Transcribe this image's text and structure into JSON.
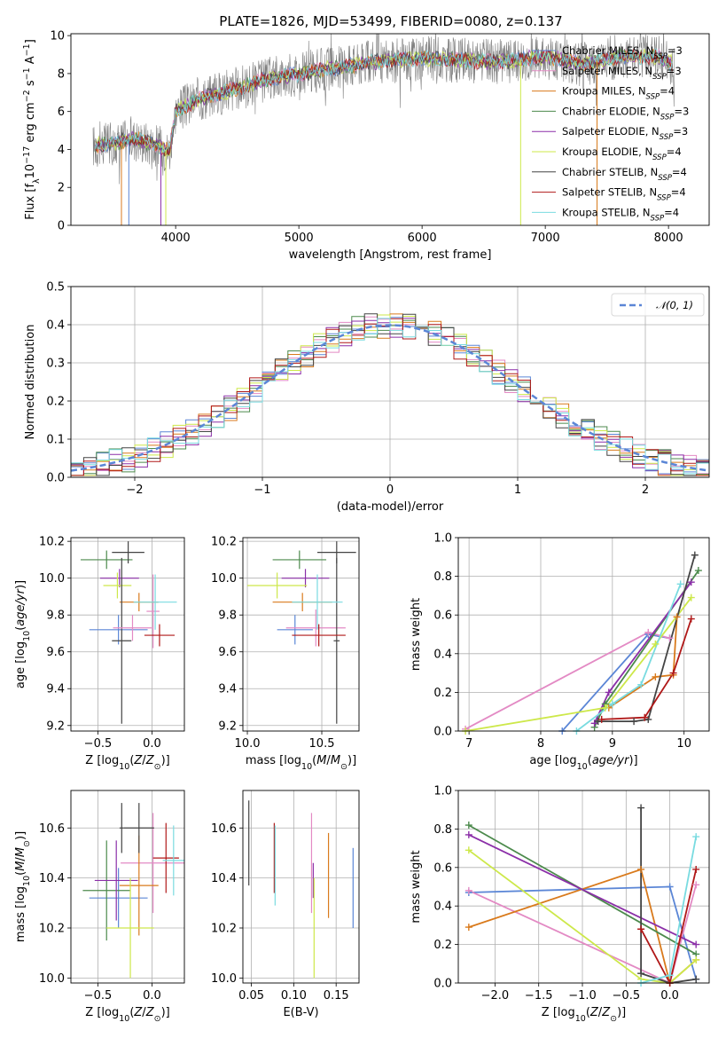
{
  "colors": {
    "blue": "#5b86d6",
    "orange": "#d97a1c",
    "green": "#4c8a4c",
    "red": "#b01818",
    "purple": "#8b2fa8",
    "brown": "#8b5a2b",
    "pink": "#e38ac4",
    "gray": "#7f7f7f",
    "olive": "#cde84a",
    "cyan": "#79dbe0",
    "black": "#444444",
    "grid": "#b0b0b0"
  },
  "chart_data": [
    {
      "id": "spectrum",
      "type": "line",
      "title": "PLATE=1826, MJD=53499, FIBERID=0080, z=0.137",
      "xlabel": "wavelength [Angstrom, rest frame]",
      "ylabel": "Flux [fλ10⁻¹⁷ erg cm⁻² s⁻¹ A⁻¹]",
      "xlim": [
        3150,
        8330
      ],
      "ylim": [
        0,
        10.1
      ],
      "xticks": [
        4000,
        5000,
        6000,
        7000,
        8000
      ],
      "yticks": [
        0,
        2,
        4,
        6,
        8,
        10
      ],
      "legend": "top-right",
      "grid": false,
      "continuum": {
        "x": [
          3330,
          3500,
          3650,
          3800,
          3950,
          4000,
          4200,
          4500,
          4800,
          5000,
          5300,
          5600,
          6000,
          6300,
          6600,
          7000,
          7300,
          7600,
          7900,
          8050
        ],
        "y": [
          4.2,
          4.3,
          4.6,
          4.3,
          3.9,
          6.0,
          6.7,
          7.2,
          7.8,
          8.0,
          8.3,
          8.6,
          8.8,
          8.7,
          8.6,
          8.9,
          8.5,
          8.9,
          8.9,
          8.5
        ]
      },
      "series": [
        {
          "name": "Chabrier MILES, N_SSP=3",
          "label_main": "Chabrier MILES, N",
          "label_sub": "SSP",
          "label_end": "=3",
          "color": "blue"
        },
        {
          "name": "Salpeter MILES, N_SSP=3",
          "label_main": "Salpeter MILES, N",
          "label_sub": "SSP",
          "label_end": "=3",
          "color": "pink"
        },
        {
          "name": "Kroupa MILES, N_SSP=4",
          "label_main": "Kroupa MILES, N",
          "label_sub": "SSP",
          "label_end": "=4",
          "color": "orange"
        },
        {
          "name": "Chabrier ELODIE, N_SSP=3",
          "label_main": "Chabrier ELODIE, N",
          "label_sub": "SSP",
          "label_end": "=3",
          "color": "green"
        },
        {
          "name": "Salpeter ELODIE, N_SSP=3",
          "label_main": "Salpeter ELODIE, N",
          "label_sub": "SSP",
          "label_end": "=3",
          "color": "purple"
        },
        {
          "name": "Kroupa ELODIE, N_SSP=4",
          "label_main": "Kroupa ELODIE, N",
          "label_sub": "SSP",
          "label_end": "=4",
          "color": "olive"
        },
        {
          "name": "Chabrier STELIB, N_SSP=4",
          "label_main": "Chabrier STELIB, N",
          "label_sub": "SSP",
          "label_end": "=4",
          "color": "black"
        },
        {
          "name": "Salpeter STELIB, N_SSP=4",
          "label_main": "Salpeter STELIB, N",
          "label_sub": "SSP",
          "label_end": "=4",
          "color": "red"
        },
        {
          "name": "Kroupa STELIB, N_SSP=4",
          "label_main": "Kroupa STELIB, N",
          "label_sub": "SSP",
          "label_end": "=4",
          "color": "cyan"
        }
      ],
      "drops": [
        {
          "x": 3560,
          "color": "orange"
        },
        {
          "x": 3620,
          "color": "blue"
        },
        {
          "x": 3880,
          "color": "purple"
        },
        {
          "x": 3920,
          "color": "olive"
        },
        {
          "x": 6800,
          "color": "olive"
        },
        {
          "x": 7420,
          "color": "orange"
        }
      ]
    },
    {
      "id": "residuals",
      "type": "step",
      "xlabel": "(data-model)/error",
      "ylabel": "Normed distribution",
      "xlim": [
        -2.5,
        2.5
      ],
      "ylim": [
        0,
        0.5
      ],
      "xticks": [
        -2,
        -1,
        0,
        1,
        2
      ],
      "yticks": [
        0.0,
        0.1,
        0.2,
        0.3,
        0.4,
        0.5
      ],
      "grid": true,
      "legend": "top-right",
      "gaussian_label": "𝒩(0, 1)",
      "bins": {
        "start": -2.5,
        "width": 0.1,
        "count": 50
      },
      "gaussian": {
        "mean": 0,
        "sigma": 1
      }
    },
    {
      "id": "age_vs_Z",
      "type": "errorbar",
      "xlabel": "Z [log10(Z/Z⊙)]",
      "ylabel": "age  [log10(age/yr)]",
      "xlim": [
        -0.75,
        0.3
      ],
      "ylim": [
        9.17,
        10.22
      ],
      "xticks": [
        -0.5,
        0.0
      ],
      "yticks": [
        9.2,
        9.4,
        9.6,
        9.8,
        10.0,
        10.2
      ],
      "grid": true,
      "points": [
        {
          "x": -0.31,
          "xerr": 0.27,
          "y": 9.72,
          "yerr": 0.08,
          "color": "blue"
        },
        {
          "x": 0.01,
          "xerr": 0.06,
          "y": 9.82,
          "yerr": 0.2,
          "color": "pink"
        },
        {
          "x": -0.12,
          "xerr": 0.18,
          "y": 9.87,
          "yerr": 0.05,
          "color": "orange"
        },
        {
          "x": -0.42,
          "xerr": 0.24,
          "y": 10.1,
          "yerr": 0.05,
          "color": "green"
        },
        {
          "x": -0.3,
          "xerr": 0.18,
          "y": 10.0,
          "yerr": 0.05,
          "color": "purple"
        },
        {
          "x": -0.32,
          "xerr": 0.13,
          "y": 9.96,
          "yerr": 0.07,
          "color": "olive"
        },
        {
          "x": -0.22,
          "xerr": 0.15,
          "y": 10.14,
          "yerr": 0.06,
          "color": "black"
        },
        {
          "x": -0.28,
          "xerr": 0.09,
          "y": 9.66,
          "yerr": 0.45,
          "color": "black"
        },
        {
          "x": 0.07,
          "xerr": 0.14,
          "y": 9.69,
          "yerr": 0.06,
          "color": "red"
        },
        {
          "x": 0.03,
          "xerr": 0.2,
          "y": 9.87,
          "yerr": 0.15,
          "color": "cyan"
        },
        {
          "x": -0.18,
          "xerr": 0.18,
          "y": 9.73,
          "yerr": 0.07,
          "color": "pink"
        }
      ]
    },
    {
      "id": "age_vs_mass",
      "type": "errorbar",
      "xlabel": "mass [log10(M/M⊙)]",
      "xlim": [
        9.97,
        10.75
      ],
      "ylim": [
        9.17,
        10.22
      ],
      "xticks": [
        10.0,
        10.5
      ],
      "yticks": [
        9.2,
        9.4,
        9.6,
        9.8,
        10.0,
        10.2
      ],
      "grid": true,
      "points": [
        {
          "x": 10.32,
          "xerr": 0.12,
          "y": 9.72,
          "yerr": 0.08,
          "color": "blue"
        },
        {
          "x": 10.46,
          "xerr": 0.2,
          "y": 9.73,
          "yerr": 0.1,
          "color": "pink"
        },
        {
          "x": 10.37,
          "xerr": 0.2,
          "y": 9.87,
          "yerr": 0.05,
          "color": "orange"
        },
        {
          "x": 10.35,
          "xerr": 0.18,
          "y": 10.1,
          "yerr": 0.05,
          "color": "green"
        },
        {
          "x": 10.39,
          "xerr": 0.16,
          "y": 10.0,
          "yerr": 0.05,
          "color": "purple"
        },
        {
          "x": 10.2,
          "xerr": 0.2,
          "y": 9.96,
          "yerr": 0.07,
          "color": "olive"
        },
        {
          "x": 10.6,
          "xerr": 0.13,
          "y": 10.14,
          "yerr": 0.06,
          "color": "black"
        },
        {
          "x": 10.6,
          "xerr": 0.02,
          "y": 9.66,
          "yerr": 0.45,
          "color": "black"
        },
        {
          "x": 10.48,
          "xerr": 0.18,
          "y": 9.69,
          "yerr": 0.06,
          "color": "red"
        },
        {
          "x": 10.47,
          "xerr": 0.17,
          "y": 9.87,
          "yerr": 0.15,
          "color": "cyan"
        }
      ]
    },
    {
      "id": "weight_vs_age",
      "type": "line",
      "xlabel": "age  [log10(age/yr)]",
      "ylabel": "mass weight",
      "xlim": [
        6.85,
        10.35
      ],
      "ylim": [
        0,
        1.0
      ],
      "xticks": [
        7,
        8,
        9,
        10
      ],
      "yticks": [
        0.0,
        0.2,
        0.4,
        0.6,
        0.8,
        1.0
      ],
      "grid": true,
      "series": [
        {
          "color": "blue",
          "x": [
            8.3,
            9.5,
            9.8
          ],
          "y": [
            0.0,
            0.5,
            0.48
          ]
        },
        {
          "color": "pink",
          "x": [
            6.95,
            9.5,
            9.8
          ],
          "y": [
            0.01,
            0.51,
            0.48
          ]
        },
        {
          "color": "orange",
          "x": [
            8.95,
            9.6,
            9.85,
            9.9
          ],
          "y": [
            0.12,
            0.28,
            0.29,
            0.59
          ]
        },
        {
          "color": "green",
          "x": [
            8.75,
            8.9,
            10.2
          ],
          "y": [
            0.02,
            0.14,
            0.83
          ]
        },
        {
          "color": "purple",
          "x": [
            8.75,
            8.95,
            10.1
          ],
          "y": [
            0.04,
            0.2,
            0.77
          ]
        },
        {
          "color": "olive",
          "x": [
            6.95,
            8.9,
            9.6,
            10.1
          ],
          "y": [
            0.0,
            0.12,
            0.45,
            0.69
          ]
        },
        {
          "color": "black",
          "x": [
            8.8,
            9.3,
            9.5,
            10.15
          ],
          "y": [
            0.05,
            0.05,
            0.06,
            0.91
          ]
        },
        {
          "color": "red",
          "x": [
            8.85,
            9.45,
            9.85,
            10.1
          ],
          "y": [
            0.06,
            0.07,
            0.3,
            0.58
          ]
        },
        {
          "color": "cyan",
          "x": [
            8.5,
            9.0,
            9.4,
            9.95
          ],
          "y": [
            0.0,
            0.14,
            0.24,
            0.76
          ]
        }
      ]
    },
    {
      "id": "mass_vs_Z",
      "type": "errorbar",
      "xlabel": "Z [log10(Z/Z⊙)]",
      "ylabel": "mass [log10(M/M⊙)]",
      "xlim": [
        -0.75,
        0.3
      ],
      "ylim": [
        9.98,
        10.75
      ],
      "xticks": [
        -0.5,
        0.0
      ],
      "yticks": [
        10.0,
        10.2,
        10.4,
        10.6
      ],
      "grid": true,
      "points": [
        {
          "x": -0.31,
          "xerr": 0.27,
          "y": 10.32,
          "yerr": 0.12,
          "color": "blue"
        },
        {
          "x": 0.01,
          "xerr": 0.3,
          "y": 10.46,
          "yerr": 0.2,
          "color": "pink"
        },
        {
          "x": -0.12,
          "xerr": 0.18,
          "y": 10.37,
          "yerr": 0.2,
          "color": "orange"
        },
        {
          "x": -0.42,
          "xerr": 0.22,
          "y": 10.35,
          "yerr": 0.2,
          "color": "green"
        },
        {
          "x": -0.33,
          "xerr": 0.2,
          "y": 10.39,
          "yerr": 0.16,
          "color": "purple"
        },
        {
          "x": -0.2,
          "xerr": 0.22,
          "y": 10.2,
          "yerr": 0.2,
          "color": "olive"
        },
        {
          "x": -0.12,
          "xerr": 0.14,
          "y": 10.6,
          "yerr": 0.1,
          "color": "black"
        },
        {
          "x": -0.28,
          "xerr": 0.02,
          "y": 10.6,
          "yerr": 0.1,
          "color": "black"
        },
        {
          "x": 0.13,
          "xerr": 0.12,
          "y": 10.48,
          "yerr": 0.14,
          "color": "red"
        },
        {
          "x": 0.2,
          "xerr": 0.1,
          "y": 10.47,
          "yerr": 0.14,
          "color": "cyan"
        }
      ]
    },
    {
      "id": "mass_vs_EBV",
      "type": "errorbar",
      "xlabel": "E(B-V)",
      "xlim": [
        0.04,
        0.177
      ],
      "ylim": [
        9.98,
        10.75
      ],
      "xticks": [
        0.05,
        0.1,
        0.15
      ],
      "yticks": [
        10.0,
        10.2,
        10.4,
        10.6
      ],
      "grid": true,
      "points": [
        {
          "x": 0.047,
          "xerr": 0,
          "y": 10.54,
          "yerr": 0.17,
          "color": "black"
        },
        {
          "x": 0.077,
          "xerr": 0,
          "y": 10.48,
          "yerr": 0.14,
          "color": "red"
        },
        {
          "x": 0.078,
          "xerr": 0,
          "y": 10.45,
          "yerr": 0.16,
          "color": "cyan"
        },
        {
          "x": 0.121,
          "xerr": 0,
          "y": 10.46,
          "yerr": 0.2,
          "color": "pink"
        },
        {
          "x": 0.123,
          "xerr": 0,
          "y": 10.39,
          "yerr": 0.07,
          "color": "purple"
        },
        {
          "x": 0.124,
          "xerr": 0,
          "y": 10.2,
          "yerr": 0.2,
          "color": "olive"
        },
        {
          "x": 0.141,
          "xerr": 0,
          "y": 10.41,
          "yerr": 0.17,
          "color": "orange"
        },
        {
          "x": 0.17,
          "xerr": 0,
          "y": 10.36,
          "yerr": 0.16,
          "color": "blue"
        }
      ]
    },
    {
      "id": "weight_vs_Z",
      "type": "line",
      "xlabel": "Z [log10(Z/Z⊙)]",
      "ylabel": "mass weight",
      "xlim": [
        -2.42,
        0.45
      ],
      "ylim": [
        0,
        1.0
      ],
      "xticks": [
        -2.0,
        -1.5,
        -1.0,
        -0.5,
        0.0
      ],
      "yticks": [
        0.0,
        0.2,
        0.4,
        0.6,
        0.8,
        1.0
      ],
      "grid": true,
      "series": [
        {
          "color": "blue",
          "x": [
            -2.3,
            0.0,
            0.3
          ],
          "y": [
            0.47,
            0.5,
            0.02
          ]
        },
        {
          "color": "pink",
          "x": [
            -2.3,
            0.0,
            0.3
          ],
          "y": [
            0.48,
            0.0,
            0.51
          ]
        },
        {
          "color": "orange",
          "x": [
            -2.3,
            -0.33,
            0.0,
            0.3
          ],
          "y": [
            0.29,
            0.59,
            0.0,
            0.12
          ]
        },
        {
          "color": "green",
          "x": [
            -2.3,
            0.3
          ],
          "y": [
            0.82,
            0.15
          ]
        },
        {
          "color": "purple",
          "x": [
            -2.3,
            0.3
          ],
          "y": [
            0.77,
            0.2
          ]
        },
        {
          "color": "olive",
          "x": [
            -2.3,
            -0.33,
            0.0,
            0.3
          ],
          "y": [
            0.69,
            0.02,
            0.0,
            0.12
          ]
        },
        {
          "color": "black",
          "x": [
            -0.33,
            -0.33,
            0.0,
            0.3
          ],
          "y": [
            0.91,
            0.05,
            0.0,
            0.02
          ]
        },
        {
          "color": "red",
          "x": [
            -0.33,
            0.0,
            0.3
          ],
          "y": [
            0.28,
            0.0,
            0.59
          ]
        },
        {
          "color": "cyan",
          "x": [
            -0.33,
            0.0,
            0.3
          ],
          "y": [
            0.0,
            0.04,
            0.76
          ]
        }
      ]
    }
  ]
}
